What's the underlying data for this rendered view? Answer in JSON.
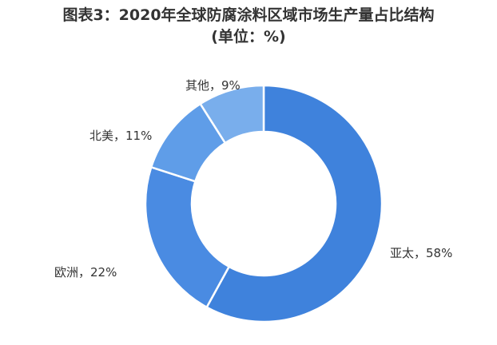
{
  "title_line1": "图表3：2020年全球防腐涂料区域市场生产量占比结构",
  "title_line2": "(单位：%)",
  "chart_data": {
    "type": "pie",
    "variant": "donut",
    "title": "图表3：2020年全球防腐涂料区域市场生产量占比结构 (单位：%)",
    "unit": "%",
    "slices": [
      {
        "label": "亚太",
        "value": 58,
        "display": "亚太，58%",
        "color": "#3f82dc"
      },
      {
        "label": "欧洲",
        "value": 22,
        "display": "欧洲，22%",
        "color": "#4a8be2"
      },
      {
        "label": "北美",
        "value": 11,
        "display": "北美，11%",
        "color": "#5f9de8"
      },
      {
        "label": "其他",
        "value": 9,
        "display": "其他，9%",
        "color": "#79aeec"
      }
    ]
  }
}
